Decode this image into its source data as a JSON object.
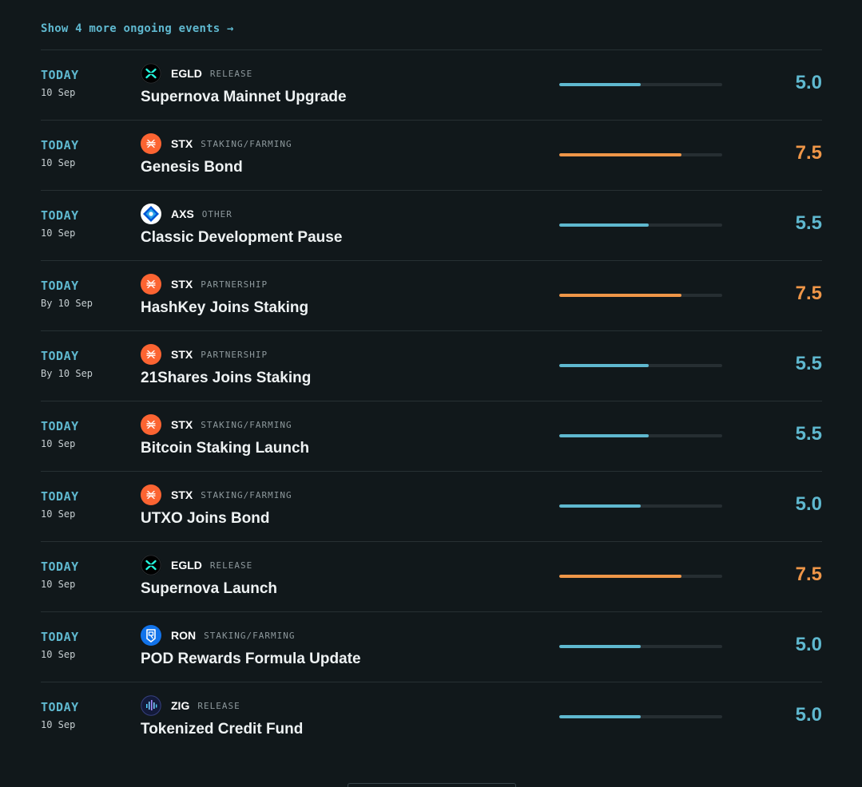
{
  "show_more": {
    "label": "Show 4 more ongoing events →"
  },
  "colors": {
    "blue": "#5fb8cf",
    "orange": "#ef9648",
    "track": "#262e32"
  },
  "events": [
    {
      "when": "TODAY",
      "date": "10 Sep",
      "ticker": "EGLD",
      "category": "RELEASE",
      "title": "Supernova Mainnet Upgrade",
      "score": "5.0",
      "score_value": 5.0,
      "tier": "blue",
      "icon": "egld-icon"
    },
    {
      "when": "TODAY",
      "date": "10 Sep",
      "ticker": "STX",
      "category": "STAKING/FARMING",
      "title": "Genesis Bond",
      "score": "7.5",
      "score_value": 7.5,
      "tier": "orange",
      "icon": "stx-icon"
    },
    {
      "when": "TODAY",
      "date": "10 Sep",
      "ticker": "AXS",
      "category": "OTHER",
      "title": "Classic Development Pause",
      "score": "5.5",
      "score_value": 5.5,
      "tier": "blue",
      "icon": "axs-icon"
    },
    {
      "when": "TODAY",
      "date": "By 10 Sep",
      "ticker": "STX",
      "category": "PARTNERSHIP",
      "title": "HashKey Joins Staking",
      "score": "7.5",
      "score_value": 7.5,
      "tier": "orange",
      "icon": "stx-icon"
    },
    {
      "when": "TODAY",
      "date": "By 10 Sep",
      "ticker": "STX",
      "category": "PARTNERSHIP",
      "title": "21Shares Joins Staking",
      "score": "5.5",
      "score_value": 5.5,
      "tier": "blue",
      "icon": "stx-icon"
    },
    {
      "when": "TODAY",
      "date": "10 Sep",
      "ticker": "STX",
      "category": "STAKING/FARMING",
      "title": "Bitcoin Staking Launch",
      "score": "5.5",
      "score_value": 5.5,
      "tier": "blue",
      "icon": "stx-icon"
    },
    {
      "when": "TODAY",
      "date": "10 Sep",
      "ticker": "STX",
      "category": "STAKING/FARMING",
      "title": "UTXO Joins Bond",
      "score": "5.0",
      "score_value": 5.0,
      "tier": "blue",
      "icon": "stx-icon"
    },
    {
      "when": "TODAY",
      "date": "10 Sep",
      "ticker": "EGLD",
      "category": "RELEASE",
      "title": "Supernova Launch",
      "score": "7.5",
      "score_value": 7.5,
      "tier": "orange",
      "icon": "egld-icon"
    },
    {
      "when": "TODAY",
      "date": "10 Sep",
      "ticker": "RON",
      "category": "STAKING/FARMING",
      "title": "POD Rewards Formula Update",
      "score": "5.0",
      "score_value": 5.0,
      "tier": "blue",
      "icon": "ron-icon"
    },
    {
      "when": "TODAY",
      "date": "10 Sep",
      "ticker": "ZIG",
      "category": "RELEASE",
      "title": "Tokenized Credit Fund",
      "score": "5.0",
      "score_value": 5.0,
      "tier": "blue",
      "icon": "zig-icon"
    }
  ]
}
